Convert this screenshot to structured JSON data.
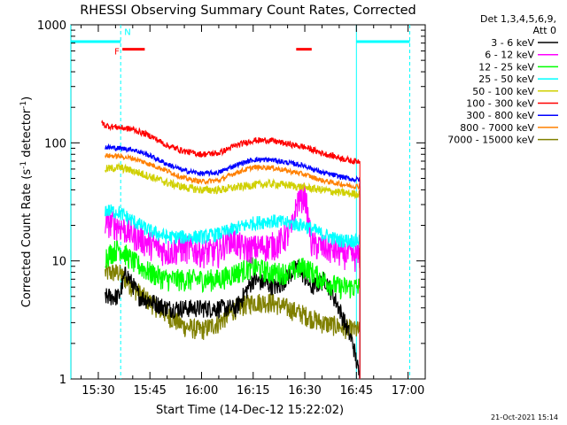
{
  "chart_data": {
    "type": "line",
    "title": "RHESSI Observing Summary Count Rates, Corrected",
    "xlabel": "Start Time (14-Dec-12 15:22:02)",
    "ylabel_main": "Corrected Count Rate (s",
    "ylabel_sup1": "-1",
    "ylabel_mid": " detector",
    "ylabel_sup2": "-1",
    "ylabel_end": ")",
    "x_ticks": [
      "15:30",
      "15:45",
      "16:00",
      "16:15",
      "16:30",
      "16:45",
      "17:00"
    ],
    "x_tick_minutes": [
      30,
      45,
      60,
      75,
      90,
      105,
      120
    ],
    "x_range_minutes": [
      22.03,
      125
    ],
    "y_ticks": [
      "1",
      "10",
      "100",
      "1000"
    ],
    "y_tick_values": [
      1,
      10,
      100,
      1000
    ],
    "ylim": [
      1,
      1000
    ],
    "y_scale": "log",
    "legend_header": [
      "Det 1,3,4,5,6,9,",
      "Att 0"
    ],
    "series": [
      {
        "name": "3 - 6 keV",
        "color": "#000000",
        "points": [
          [
            32,
            5
          ],
          [
            36,
            5
          ],
          [
            38,
            8
          ],
          [
            42,
            5
          ],
          [
            50,
            4
          ],
          [
            60,
            4
          ],
          [
            70,
            4
          ],
          [
            75,
            7
          ],
          [
            82,
            6
          ],
          [
            88,
            9
          ],
          [
            92,
            6
          ],
          [
            96,
            7
          ],
          [
            100,
            4
          ],
          [
            104,
            2
          ],
          [
            106,
            1
          ]
        ]
      },
      {
        "name": "6 - 12 keV",
        "color": "#ff00ff",
        "points": [
          [
            32,
            22
          ],
          [
            36,
            20
          ],
          [
            40,
            17
          ],
          [
            45,
            14
          ],
          [
            50,
            12
          ],
          [
            55,
            13
          ],
          [
            60,
            12
          ],
          [
            65,
            12
          ],
          [
            68,
            16
          ],
          [
            72,
            13
          ],
          [
            76,
            13
          ],
          [
            82,
            14
          ],
          [
            86,
            18
          ],
          [
            88,
            33
          ],
          [
            90,
            37
          ],
          [
            92,
            14
          ],
          [
            96,
            13
          ],
          [
            100,
            12
          ],
          [
            104,
            11
          ],
          [
            106,
            11
          ]
        ]
      },
      {
        "name": "12 - 25 keV",
        "color": "#00ff00",
        "points": [
          [
            32,
            11
          ],
          [
            36,
            13
          ],
          [
            40,
            10
          ],
          [
            45,
            8
          ],
          [
            50,
            7
          ],
          [
            55,
            7
          ],
          [
            60,
            7
          ],
          [
            65,
            7
          ],
          [
            70,
            8
          ],
          [
            75,
            9
          ],
          [
            80,
            8
          ],
          [
            85,
            8
          ],
          [
            90,
            9
          ],
          [
            95,
            7
          ],
          [
            100,
            6
          ],
          [
            104,
            6
          ],
          [
            106,
            6
          ]
        ]
      },
      {
        "name": "25 - 50 keV",
        "color": "#00ffff",
        "points": [
          [
            32,
            27
          ],
          [
            36,
            26
          ],
          [
            40,
            22
          ],
          [
            45,
            18
          ],
          [
            50,
            16
          ],
          [
            55,
            16
          ],
          [
            60,
            16
          ],
          [
            65,
            17
          ],
          [
            70,
            19
          ],
          [
            75,
            21
          ],
          [
            80,
            22
          ],
          [
            85,
            21
          ],
          [
            90,
            20
          ],
          [
            95,
            17
          ],
          [
            100,
            15
          ],
          [
            104,
            15
          ],
          [
            106,
            15
          ]
        ]
      },
      {
        "name": "50 - 100 keV",
        "color": "#d0d000",
        "points": [
          [
            32,
            60
          ],
          [
            36,
            62
          ],
          [
            40,
            58
          ],
          [
            45,
            52
          ],
          [
            50,
            46
          ],
          [
            55,
            42
          ],
          [
            60,
            40
          ],
          [
            65,
            40
          ],
          [
            70,
            42
          ],
          [
            75,
            44
          ],
          [
            80,
            45
          ],
          [
            85,
            44
          ],
          [
            90,
            42
          ],
          [
            95,
            40
          ],
          [
            100,
            38
          ],
          [
            104,
            37
          ],
          [
            106,
            37
          ]
        ]
      },
      {
        "name": "100 - 300 keV",
        "color": "#ff0000",
        "points": [
          [
            31,
            150
          ],
          [
            32,
            140
          ],
          [
            36,
            135
          ],
          [
            40,
            130
          ],
          [
            45,
            115
          ],
          [
            50,
            95
          ],
          [
            55,
            85
          ],
          [
            60,
            80
          ],
          [
            65,
            82
          ],
          [
            70,
            95
          ],
          [
            75,
            105
          ],
          [
            80,
            105
          ],
          [
            85,
            98
          ],
          [
            90,
            92
          ],
          [
            95,
            82
          ],
          [
            100,
            75
          ],
          [
            104,
            70
          ],
          [
            106,
            70
          ]
        ]
      },
      {
        "name": "300 - 800 keV",
        "color": "#0000ff",
        "points": [
          [
            32,
            92
          ],
          [
            36,
            90
          ],
          [
            40,
            88
          ],
          [
            45,
            78
          ],
          [
            50,
            66
          ],
          [
            55,
            58
          ],
          [
            60,
            55
          ],
          [
            65,
            56
          ],
          [
            70,
            65
          ],
          [
            75,
            72
          ],
          [
            80,
            72
          ],
          [
            85,
            68
          ],
          [
            90,
            64
          ],
          [
            95,
            56
          ],
          [
            100,
            52
          ],
          [
            104,
            49
          ],
          [
            106,
            49
          ]
        ]
      },
      {
        "name": "800 - 7000 keV",
        "color": "#ff8000",
        "points": [
          [
            32,
            78
          ],
          [
            36,
            77
          ],
          [
            40,
            74
          ],
          [
            45,
            66
          ],
          [
            50,
            58
          ],
          [
            55,
            50
          ],
          [
            60,
            47
          ],
          [
            65,
            48
          ],
          [
            70,
            56
          ],
          [
            75,
            62
          ],
          [
            80,
            62
          ],
          [
            85,
            58
          ],
          [
            90,
            54
          ],
          [
            95,
            48
          ],
          [
            100,
            45
          ],
          [
            104,
            43
          ],
          [
            106,
            43
          ]
        ]
      },
      {
        "name": "7000 - 15000 keV",
        "color": "#808000",
        "points": [
          [
            32,
            8
          ],
          [
            36,
            8
          ],
          [
            40,
            6
          ],
          [
            45,
            4.5
          ],
          [
            50,
            3.5
          ],
          [
            55,
            2.8
          ],
          [
            60,
            2.6
          ],
          [
            65,
            3
          ],
          [
            70,
            4
          ],
          [
            75,
            4.5
          ],
          [
            80,
            4.5
          ],
          [
            85,
            4
          ],
          [
            90,
            3.5
          ],
          [
            95,
            3
          ],
          [
            100,
            2.8
          ],
          [
            104,
            2.6
          ],
          [
            106,
            2.6
          ]
        ]
      }
    ],
    "annotations": {
      "night_label": "N",
      "flare_label": "F",
      "night_bar_color": "#00ffff",
      "flare_bar_color": "#ff0000",
      "night_intervals_minutes": [
        [
          22,
          36.5
        ],
        [
          105,
          120.5
        ]
      ],
      "flare_intervals_minutes": [
        [
          37,
          43.5
        ],
        [
          87.5,
          92
        ]
      ]
    },
    "grid": false,
    "legend_placement": "right"
  },
  "footer_timestamp": "21-Oct-2021 15:14"
}
